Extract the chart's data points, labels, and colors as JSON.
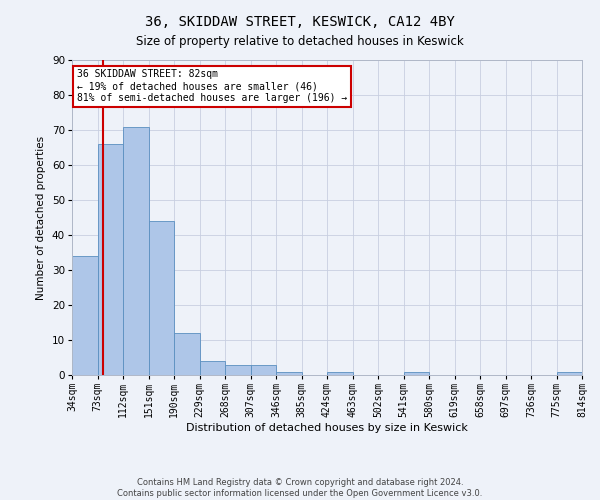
{
  "title": "36, SKIDDAW STREET, KESWICK, CA12 4BY",
  "subtitle": "Size of property relative to detached houses in Keswick",
  "xlabel": "Distribution of detached houses by size in Keswick",
  "ylabel": "Number of detached properties",
  "footer_line1": "Contains HM Land Registry data © Crown copyright and database right 2024.",
  "footer_line2": "Contains public sector information licensed under the Open Government Licence v3.0.",
  "annotation_line1": "36 SKIDDAW STREET: 82sqm",
  "annotation_line2": "← 19% of detached houses are smaller (46)",
  "annotation_line3": "81% of semi-detached houses are larger (196) →",
  "property_size_sqm": 82,
  "bin_edges": [
    34,
    73,
    112,
    151,
    190,
    229,
    268,
    307,
    346,
    385,
    424,
    463,
    502,
    541,
    580,
    619,
    658,
    697,
    736,
    775,
    814
  ],
  "bin_labels": [
    "34sqm",
    "73sqm",
    "112sqm",
    "151sqm",
    "190sqm",
    "229sqm",
    "268sqm",
    "307sqm",
    "346sqm",
    "385sqm",
    "424sqm",
    "463sqm",
    "502sqm",
    "541sqm",
    "580sqm",
    "619sqm",
    "658sqm",
    "697sqm",
    "736sqm",
    "775sqm",
    "814sqm"
  ],
  "bar_values": [
    34,
    66,
    71,
    44,
    12,
    4,
    3,
    3,
    1,
    0,
    1,
    0,
    0,
    1,
    0,
    0,
    0,
    0,
    0,
    1
  ],
  "bar_color": "#aec6e8",
  "bar_edge_color": "#5a8fc0",
  "highlight_color": "#cc0000",
  "background_color": "#eef2f9",
  "grid_color": "#c8cfe0",
  "ylim": [
    0,
    90
  ],
  "yticks": [
    0,
    10,
    20,
    30,
    40,
    50,
    60,
    70,
    80,
    90
  ],
  "title_fontsize": 10,
  "subtitle_fontsize": 8.5,
  "ylabel_fontsize": 7.5,
  "xlabel_fontsize": 8,
  "tick_fontsize": 7,
  "footer_fontsize": 6,
  "annot_fontsize": 7
}
